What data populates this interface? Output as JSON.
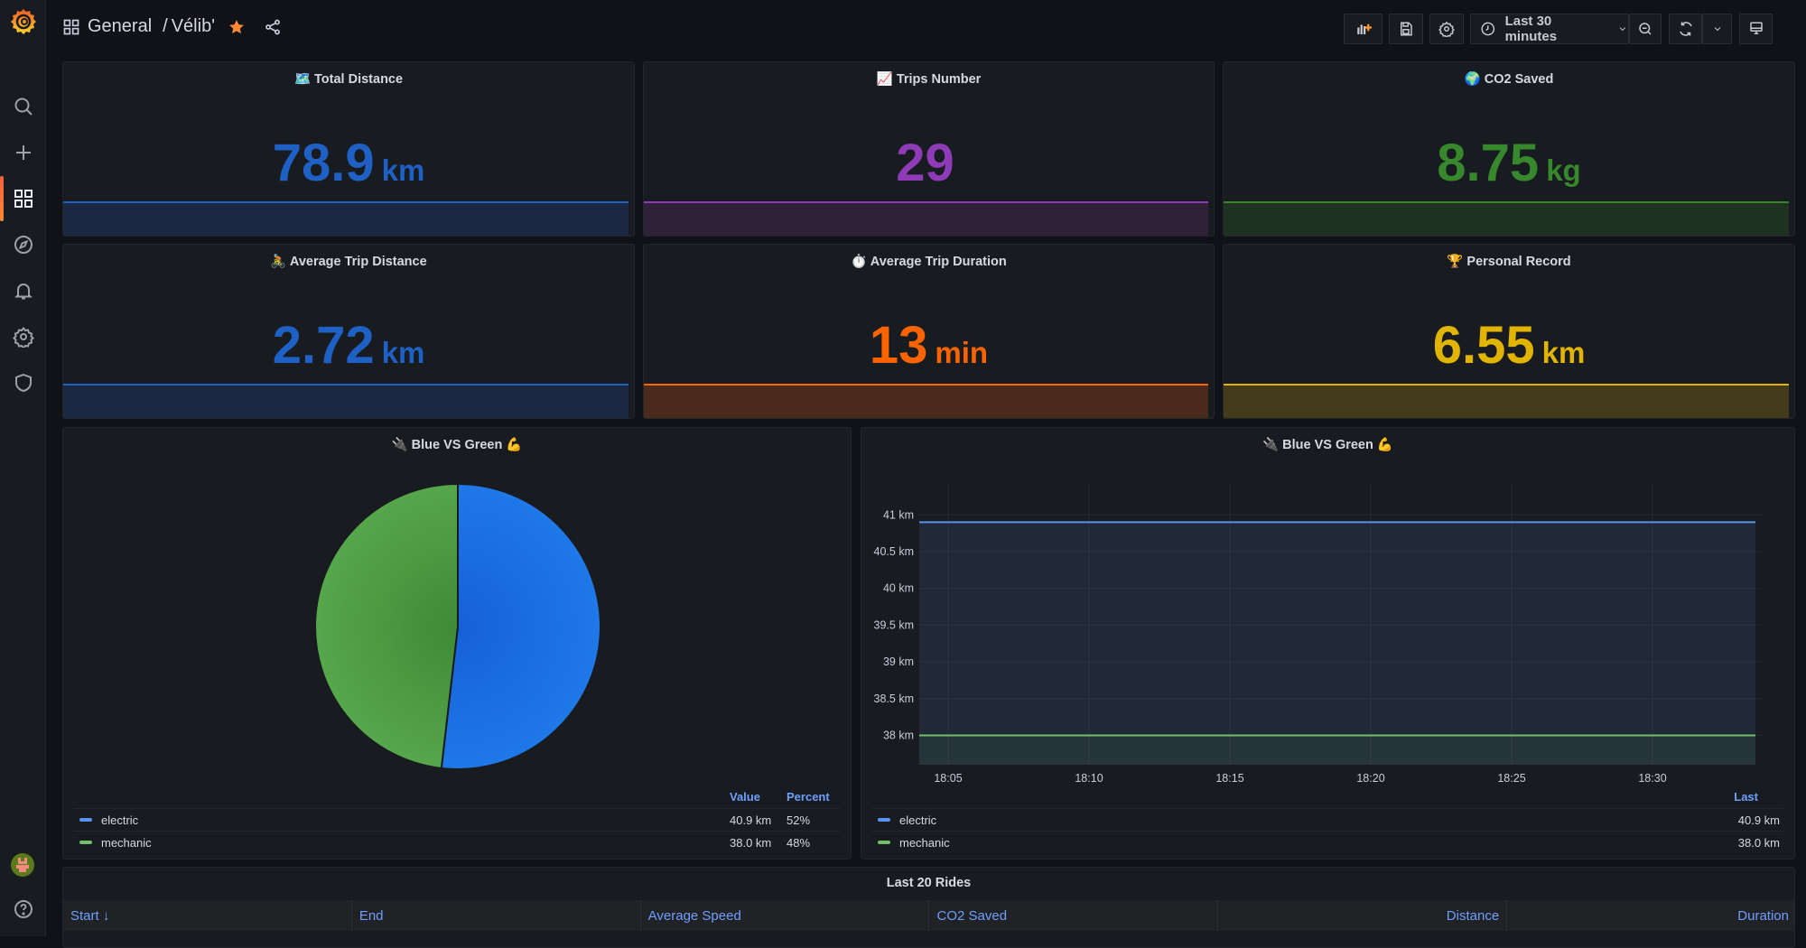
{
  "breadcrumb": {
    "folder": "General",
    "separator": "/",
    "dashboard": "Vélib'"
  },
  "toolbar": {
    "time_range": "Last 30 minutes",
    "buttons": [
      "add-panel",
      "save-dashboard",
      "dashboard-settings",
      "time-picker",
      "zoom-out",
      "refresh",
      "refresh-interval",
      "cycle-view-mode"
    ]
  },
  "sidebar": {
    "items": [
      "search",
      "create",
      "dashboards",
      "explore",
      "alerting",
      "configuration",
      "server-admin"
    ],
    "active": "dashboards",
    "bottom": [
      "user-avatar",
      "help"
    ]
  },
  "stats": [
    {
      "icon": "🗺️",
      "title": "Total Distance",
      "value": "78.9",
      "unit": "km",
      "color": "#1f60c4",
      "fill": "#1b2841"
    },
    {
      "icon": "📈",
      "title": "Trips Number",
      "value": "29",
      "unit": "",
      "color": "#8f3bb8",
      "fill": "#2f2138"
    },
    {
      "icon": "🌍",
      "title": "CO2 Saved",
      "value": "8.75",
      "unit": "kg",
      "color": "#37872d",
      "fill": "#1f3121"
    },
    {
      "icon": "🚴",
      "title": "Average Trip Distance",
      "value": "2.72",
      "unit": "km",
      "color": "#1f60c4",
      "fill": "#1b2841"
    },
    {
      "icon": "⏱️",
      "title": "Average Trip Duration",
      "value": "13",
      "unit": "min",
      "color": "#fa6400",
      "fill": "#4a2a1a"
    },
    {
      "icon": "🏆",
      "title": "Personal Record",
      "value": "6.55",
      "unit": "km",
      "color": "#e0b400",
      "fill": "#433b1a"
    }
  ],
  "pie_panel": {
    "title": "Blue VS Green",
    "icon_left": "🔌",
    "icon_right": "💪",
    "legend_headers": {
      "value": "Value",
      "percent": "Percent"
    },
    "legend": [
      {
        "name": "electric",
        "value": "40.9 km",
        "percent": "52%",
        "color": "#5794f2"
      },
      {
        "name": "mechanic",
        "value": "38.0 km",
        "percent": "48%",
        "color": "#73bf69"
      }
    ]
  },
  "ts_panel": {
    "title": "Blue VS Green",
    "icon_left": "🔌",
    "icon_right": "💪",
    "legend_header": "Last",
    "legend": [
      {
        "name": "electric",
        "last": "40.9 km",
        "color": "#5794f2"
      },
      {
        "name": "mechanic",
        "last": "38.0 km",
        "color": "#73bf69"
      }
    ]
  },
  "chart_data": [
    {
      "type": "pie",
      "title": "Blue VS Green",
      "labels": [
        "electric",
        "mechanic"
      ],
      "values": [
        40.9,
        38.0
      ],
      "percents": [
        52,
        48
      ],
      "colors": [
        "#1f78e8",
        "#56a64b"
      ],
      "legend": "bottom"
    },
    {
      "type": "area",
      "title": "Blue VS Green",
      "x_ticks": [
        "18:05",
        "18:10",
        "18:15",
        "18:20",
        "18:25",
        "18:30"
      ],
      "y_ticks": [
        "41 km",
        "40.5 km",
        "40 km",
        "39.5 km",
        "39 km",
        "38.5 km",
        "38 km"
      ],
      "y_tick_values": [
        41,
        40.5,
        40,
        39.5,
        39,
        38.5,
        38
      ],
      "ylim": [
        37.6,
        41.2
      ],
      "series": [
        {
          "name": "electric",
          "values": [
            40.9,
            40.9
          ],
          "color": "#5794f2"
        },
        {
          "name": "mechanic",
          "values": [
            38.0,
            38.0
          ],
          "color": "#73bf69"
        }
      ],
      "grid": true,
      "legend": "bottom"
    }
  ],
  "table_panel": {
    "title": "Last 20 Rides",
    "columns": [
      {
        "label": "Start ↓",
        "align": "left"
      },
      {
        "label": "End",
        "align": "left"
      },
      {
        "label": "Average Speed",
        "align": "left"
      },
      {
        "label": "CO2 Saved",
        "align": "left"
      },
      {
        "label": "Distance",
        "align": "right"
      },
      {
        "label": "Duration",
        "align": "right"
      }
    ]
  }
}
